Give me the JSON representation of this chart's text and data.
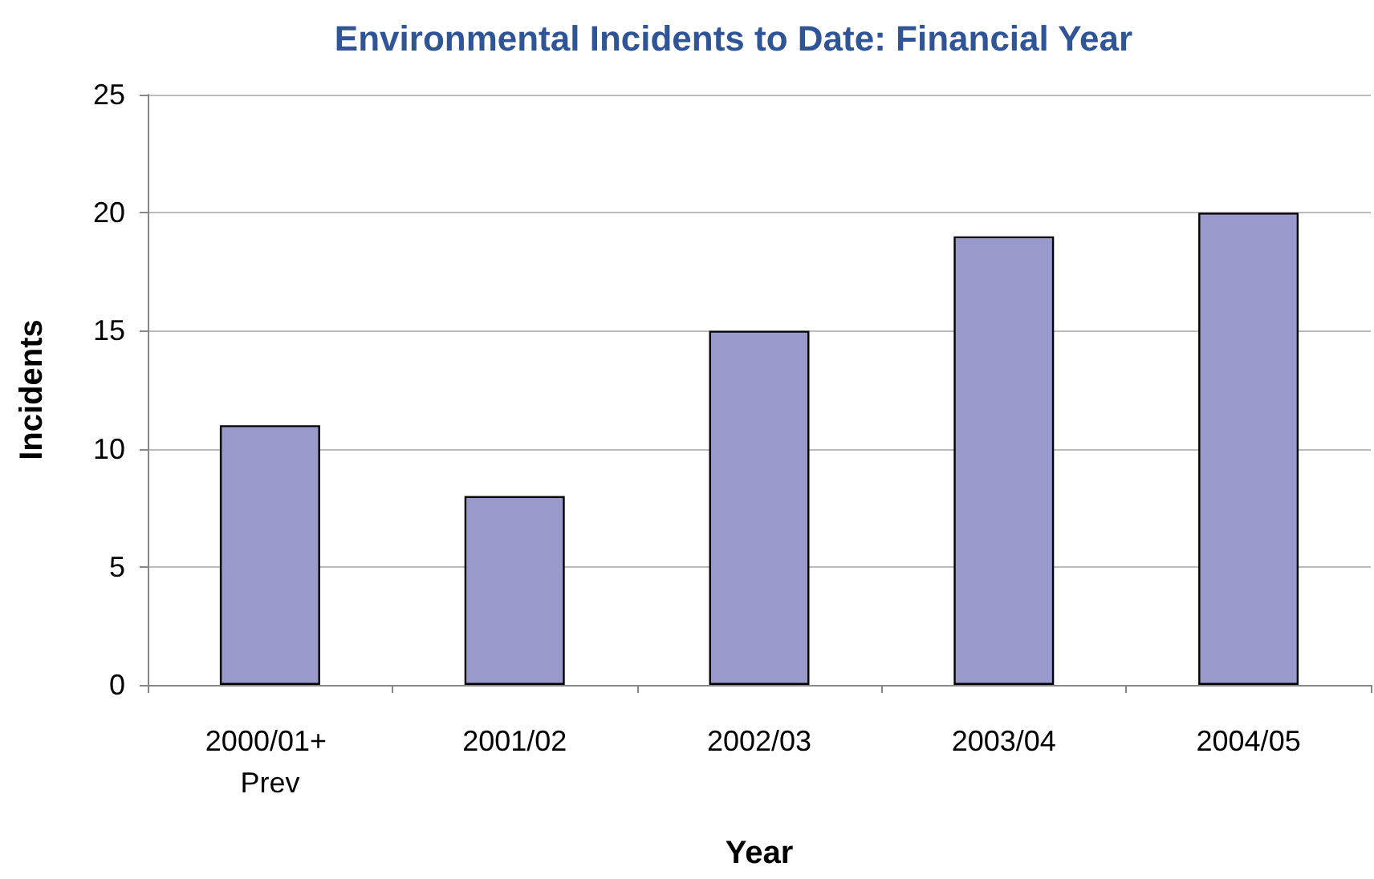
{
  "chart_data": {
    "type": "bar",
    "title": "Environmental Incidents to Date: Financial Year",
    "xlabel": "Year",
    "ylabel": "Incidents",
    "categories": [
      "2000/01+ Prev",
      "2001/02",
      "2002/03",
      "2003/04",
      "2004/05"
    ],
    "values": [
      11,
      8,
      15,
      19,
      20
    ],
    "color": "#9999cc",
    "ylim": [
      0,
      25
    ],
    "yticks": [
      0,
      5,
      10,
      15,
      20,
      25
    ],
    "grid": "y"
  }
}
